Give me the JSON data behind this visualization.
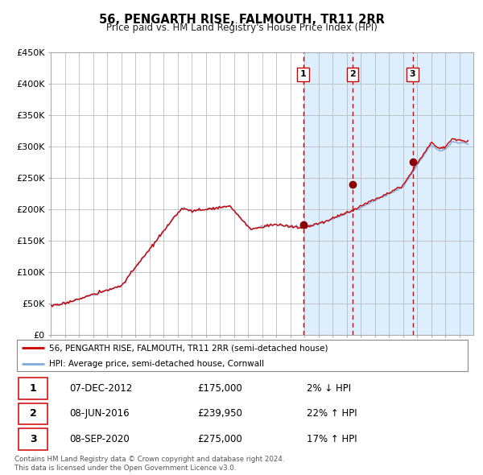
{
  "title": "56, PENGARTH RISE, FALMOUTH, TR11 2RR",
  "subtitle": "Price paid vs. HM Land Registry's House Price Index (HPI)",
  "legend_line1": "56, PENGARTH RISE, FALMOUTH, TR11 2RR (semi-detached house)",
  "legend_line2": "HPI: Average price, semi-detached house, Cornwall",
  "footer1": "Contains HM Land Registry data © Crown copyright and database right 2024.",
  "footer2": "This data is licensed under the Open Government Licence v3.0.",
  "hpi_color": "#7faadd",
  "price_color": "#cc0000",
  "sale_dot_color": "#880000",
  "vline_color": "#cc0000",
  "bg_highlight_color": "#ddeeff",
  "grid_color": "#bbbbbb",
  "ylim": [
    0,
    450000
  ],
  "yticks": [
    0,
    50000,
    100000,
    150000,
    200000,
    250000,
    300000,
    350000,
    400000,
    450000
  ],
  "ytick_labels": [
    "£0",
    "£50K",
    "£100K",
    "£150K",
    "£200K",
    "£250K",
    "£300K",
    "£350K",
    "£400K",
    "£450K"
  ],
  "sale1_date_num": 2012.92,
  "sale1_price": 175000,
  "sale1_label": "07-DEC-2012",
  "sale1_text": "£175,000",
  "sale1_pct": "2% ↓ HPI",
  "sale2_date_num": 2016.44,
  "sale2_price": 239950,
  "sale2_label": "08-JUN-2016",
  "sale2_text": "£239,950",
  "sale2_pct": "22% ↑ HPI",
  "sale3_date_num": 2020.69,
  "sale3_price": 275000,
  "sale3_label": "08-SEP-2020",
  "sale3_text": "£275,000",
  "sale3_pct": "17% ↑ HPI",
  "xmin": 1995.0,
  "xmax": 2025.0,
  "highlight_start": 2012.92,
  "highlight_end": 2025.0
}
